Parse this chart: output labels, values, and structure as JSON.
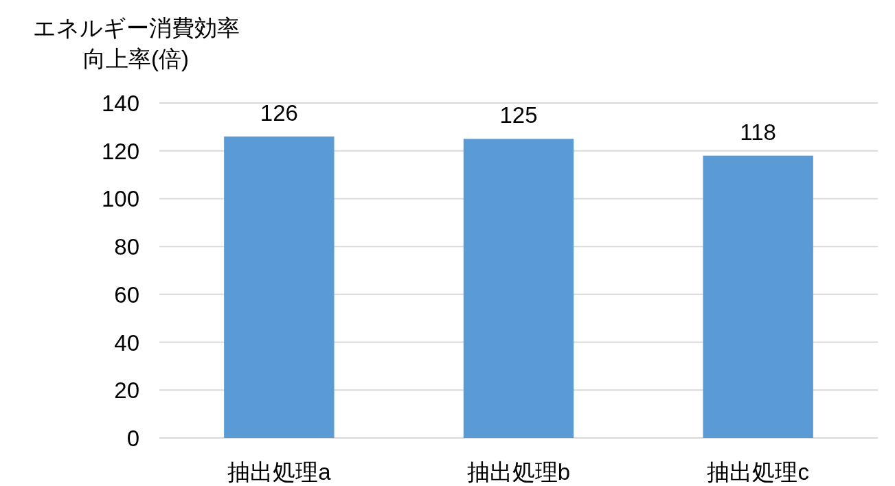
{
  "chart_data": {
    "type": "bar",
    "ylabel": "エネルギー消費効率向上率(倍)",
    "categories": [
      "抽出処理a",
      "抽出処理b",
      "抽出処理c"
    ],
    "values": [
      126,
      125,
      118
    ],
    "color": "#5b9bd5",
    "ylim": [
      0,
      140
    ],
    "yticks": [
      0,
      20,
      40,
      60,
      80,
      100,
      120,
      140
    ],
    "grid": "y",
    "data_labels": true
  }
}
